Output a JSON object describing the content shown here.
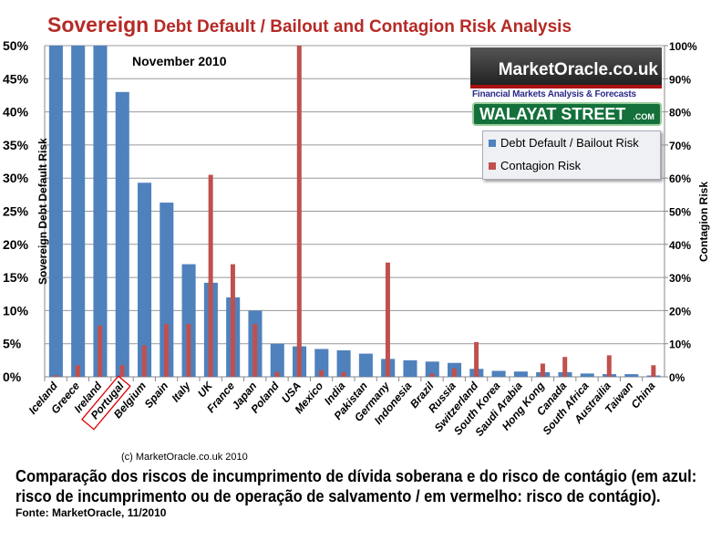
{
  "chart_data": {
    "type": "bar",
    "title_big": "Sovereign",
    "title_rest": "Debt Default / Bailout and Contagion Risk Analysis",
    "subtitle": "November 2010",
    "ylabel": "Sovereign Debt Default Risk",
    "y2label": "Contagion Risk",
    "ylim": [
      0,
      50
    ],
    "y2lim": [
      0,
      100
    ],
    "yticks": [
      "0%",
      "5%",
      "10%",
      "15%",
      "20%",
      "25%",
      "30%",
      "35%",
      "40%",
      "45%",
      "50%"
    ],
    "y2ticks": [
      "0%",
      "10%",
      "20%",
      "30%",
      "40%",
      "50%",
      "60%",
      "70%",
      "80%",
      "90%",
      "100%"
    ],
    "grid": true,
    "legend_position": "top-right",
    "highlighted_category": "Portugal",
    "categories": [
      "Iceland",
      "Greece",
      "Ireland",
      "Portugal",
      "Belgium",
      "Spain",
      "Italy",
      "UK",
      "France",
      "Japan",
      "Poland",
      "USA",
      "Mexico",
      "India",
      "Pakistan",
      "Germany",
      "Indonesia",
      "Brazil",
      "Russia",
      "Switzerland",
      "South Korea",
      "Saudi Arabia",
      "Hong Kong",
      "Canada",
      "South Africa",
      "Austrailia",
      "Taiwan",
      "China"
    ],
    "series": [
      {
        "name": "Debt Default / Bailout Risk",
        "axis": "left",
        "color": "#4f81bd",
        "values": [
          50,
          50,
          50,
          43,
          29.3,
          26.3,
          17,
          14.2,
          12,
          10,
          5,
          4.6,
          4.2,
          4.0,
          3.5,
          2.7,
          2.5,
          2.3,
          2.1,
          1.2,
          0.9,
          0.8,
          0.7,
          0.7,
          0.5,
          0.4,
          0.4,
          0.2
        ]
      },
      {
        "name": "Contagion Risk",
        "axis": "right",
        "color": "#c0504d",
        "values": [
          0.5,
          3.5,
          15.5,
          3.5,
          9.5,
          16,
          16,
          61,
          34,
          16,
          1.5,
          100,
          2,
          1.5,
          0,
          34.5,
          0,
          1,
          2.5,
          10.5,
          0,
          0,
          4,
          6,
          0,
          6.5,
          0,
          3.5
        ]
      }
    ]
  },
  "branding": {
    "logo": "MarketOracle.co.uk",
    "tagline": "Financial Markets Analysis & Forecasts",
    "walayat": "WALAYAT STREET",
    "walayat_suffix": ".COM"
  },
  "copyright": "(c) MarketOracle.co.uk 2010",
  "caption": "Comparação dos riscos de incumprimento de dívida soberana e do risco de contágio (em azul: risco de incumprimento ou de operação de salvamento / em vermelho: risco de contágio).",
  "source": "Fonte: MarketOracle, 11/2010"
}
